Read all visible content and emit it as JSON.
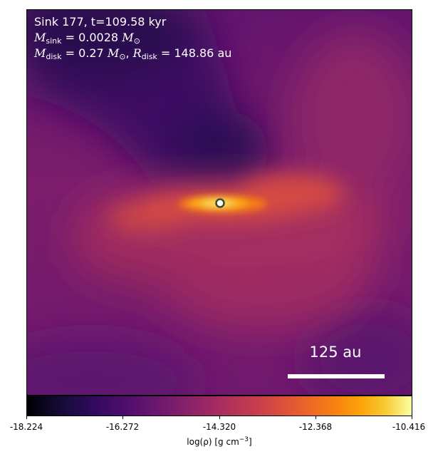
{
  "annotation": {
    "line1": "Sink 177, t=109.58 kyr",
    "m_sink_symbol": "M",
    "m_sink_sub": "sink",
    "m_sink_value": " = 0.0028 ",
    "m_sink_unit": "M",
    "m_sink_unit_sub": "⊙",
    "m_disk_symbol": "M",
    "m_disk_sub": "disk",
    "m_disk_value": " = 0.27 ",
    "m_disk_unit": "M",
    "m_disk_unit_sub": "⊙",
    "r_disk_sep": ", ",
    "r_disk_symbol": "R",
    "r_disk_sub": "disk",
    "r_disk_value": " = 148.86 au"
  },
  "scalebar": {
    "label": "125 au"
  },
  "colorbar": {
    "colormap": "inferno",
    "ticks": [
      "-18.224",
      "-16.272",
      "-14.320",
      "-12.368",
      "-10.416"
    ],
    "label_prefix": "log(ρ) [g cm",
    "label_exp": "−3",
    "label_suffix": "]"
  },
  "colors": {
    "background_plasma": "#7a1d6d",
    "sink_marker_fill": "#ffffff",
    "sink_marker_edge": "#3a4a2a"
  }
}
